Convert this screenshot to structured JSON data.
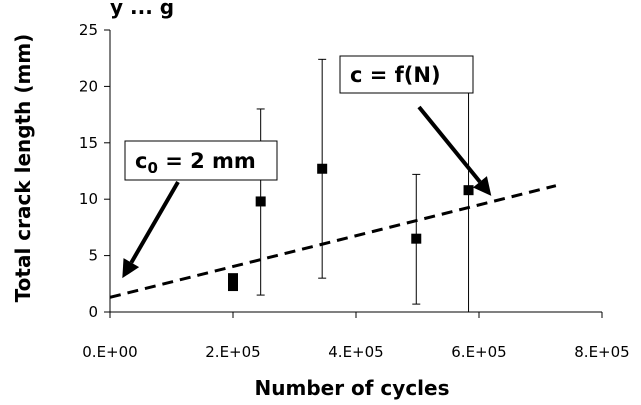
{
  "chart_data": {
    "type": "scatter",
    "title_fragment": "y   ...   g",
    "xlabel": "Number of cycles",
    "ylabel": "Total crack length (mm)",
    "xlim": [
      0,
      800000
    ],
    "ylim": [
      0,
      25
    ],
    "x_ticks": [
      {
        "value": 0,
        "label": "0.E+00"
      },
      {
        "value": 200000,
        "label": "2.E+05"
      },
      {
        "value": 400000,
        "label": "4.E+05"
      },
      {
        "value": 600000,
        "label": "6.E+05"
      },
      {
        "value": 800000,
        "label": "8.E+05"
      }
    ],
    "y_ticks": [
      {
        "value": 0,
        "label": "0"
      },
      {
        "value": 5,
        "label": "5"
      },
      {
        "value": 10,
        "label": "10"
      },
      {
        "value": 15,
        "label": "15"
      },
      {
        "value": 20,
        "label": "20"
      },
      {
        "value": 25,
        "label": "25"
      }
    ],
    "grid": false,
    "points": [
      {
        "x": 200000,
        "y": 3.0,
        "error_bar": false
      },
      {
        "x": 200000,
        "y": 2.3,
        "error_bar": false
      },
      {
        "x": 200000,
        "y": 2.6,
        "error_bar": false
      },
      {
        "x": 245000,
        "y": 9.8,
        "error_bar": true,
        "low": 1.5,
        "high": 18.0
      },
      {
        "x": 345000,
        "y": 12.7,
        "error_bar": true,
        "low": 3.0,
        "high": 22.4
      },
      {
        "x": 498000,
        "y": 6.5,
        "error_bar": true,
        "low": 0.7,
        "high": 12.2
      },
      {
        "x": 583000,
        "y": 10.8,
        "error_bar": true,
        "low": 0.0,
        "high": 21.4
      }
    ],
    "trend_line": {
      "style": "dashed",
      "from": [
        0,
        1.3
      ],
      "to": [
        725000,
        11.2
      ]
    },
    "annotations": [
      {
        "text_main": "c",
        "text_sub": "0",
        "text_rest": " = 2 mm",
        "target": [
          20000,
          3.0
        ]
      },
      {
        "text_main": "c = f(N)",
        "text_sub": "",
        "text_rest": "",
        "target": [
          620000,
          10.3
        ]
      }
    ],
    "colors": {
      "marker": "#000000",
      "line": "#000000",
      "background": "#ffffff"
    }
  }
}
